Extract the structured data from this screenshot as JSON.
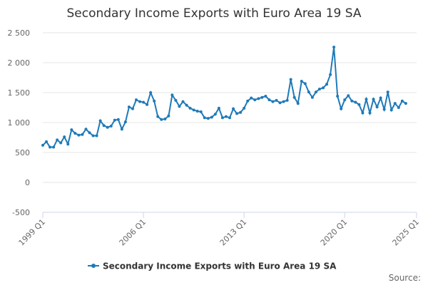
{
  "chart_data": {
    "type": "line",
    "title": "Secondary Income Exports with Euro Area 19 SA",
    "source": "Source:",
    "x": [
      1999,
      1999.25,
      1999.5,
      1999.75,
      2000,
      2000.25,
      2000.5,
      2000.75,
      2001,
      2001.25,
      2001.5,
      2001.75,
      2002,
      2002.25,
      2002.5,
      2002.75,
      2003,
      2003.25,
      2003.5,
      2003.75,
      2004,
      2004.25,
      2004.5,
      2004.75,
      2005,
      2005.25,
      2005.5,
      2005.75,
      2006,
      2006.25,
      2006.5,
      2006.75,
      2007,
      2007.25,
      2007.5,
      2007.75,
      2008,
      2008.25,
      2008.5,
      2008.75,
      2009,
      2009.25,
      2009.5,
      2009.75,
      2010,
      2010.25,
      2010.5,
      2010.75,
      2011,
      2011.25,
      2011.5,
      2011.75,
      2012,
      2012.25,
      2012.5,
      2012.75,
      2013,
      2013.25,
      2013.5,
      2013.75,
      2014,
      2014.25,
      2014.5,
      2014.75,
      2015,
      2015.25,
      2015.5,
      2015.75,
      2016,
      2016.25,
      2016.5,
      2016.75,
      2017,
      2017.25,
      2017.5,
      2017.75,
      2018,
      2018.25,
      2018.5,
      2018.75,
      2019,
      2019.25,
      2019.5,
      2019.75,
      2020,
      2020.25,
      2020.5,
      2020.75,
      2021,
      2021.25,
      2021.5,
      2021.75,
      2022,
      2022.25,
      2022.5,
      2022.75,
      2023,
      2023.25,
      2023.5,
      2023.75,
      2024,
      2024.25
    ],
    "series": [
      {
        "name": "Secondary Income Exports with Euro Area 19 SA",
        "color": "#1f7ab8",
        "values": [
          620,
          680,
          590,
          590,
          710,
          660,
          760,
          640,
          880,
          820,
          790,
          800,
          890,
          830,
          780,
          780,
          1030,
          950,
          920,
          940,
          1040,
          1050,
          890,
          1010,
          1260,
          1230,
          1380,
          1350,
          1340,
          1300,
          1500,
          1360,
          1100,
          1050,
          1060,
          1110,
          1460,
          1370,
          1270,
          1350,
          1290,
          1240,
          1210,
          1190,
          1180,
          1080,
          1070,
          1090,
          1140,
          1240,
          1080,
          1100,
          1080,
          1230,
          1150,
          1170,
          1240,
          1360,
          1410,
          1380,
          1400,
          1420,
          1440,
          1380,
          1350,
          1370,
          1330,
          1350,
          1370,
          1720,
          1420,
          1320,
          1690,
          1650,
          1510,
          1420,
          1510,
          1560,
          1580,
          1640,
          1800,
          2260,
          1440,
          1230,
          1380,
          1450,
          1360,
          1340,
          1300,
          1160,
          1390,
          1160,
          1390,
          1260,
          1410,
          1220,
          1510,
          1210,
          1320,
          1250,
          1360,
          1320
        ]
      }
    ],
    "xlim": [
      1999,
      2025
    ],
    "xticks": [
      {
        "value": 1999,
        "label": "1999 Q1"
      },
      {
        "value": 2006,
        "label": "2006 Q1"
      },
      {
        "value": 2013,
        "label": "2013 Q1"
      },
      {
        "value": 2020,
        "label": "2020 Q1"
      },
      {
        "value": 2025,
        "label": "2025 Q1"
      }
    ],
    "ylim": [
      -500,
      2500
    ],
    "yticks": [
      -500,
      0,
      500,
      {
        "value": 1000,
        "label": "1 000"
      },
      {
        "value": 1500,
        "label": "1 500"
      },
      {
        "value": 2000,
        "label": "2 000"
      },
      {
        "value": 2500,
        "label": "2 500"
      }
    ],
    "grid": true
  }
}
